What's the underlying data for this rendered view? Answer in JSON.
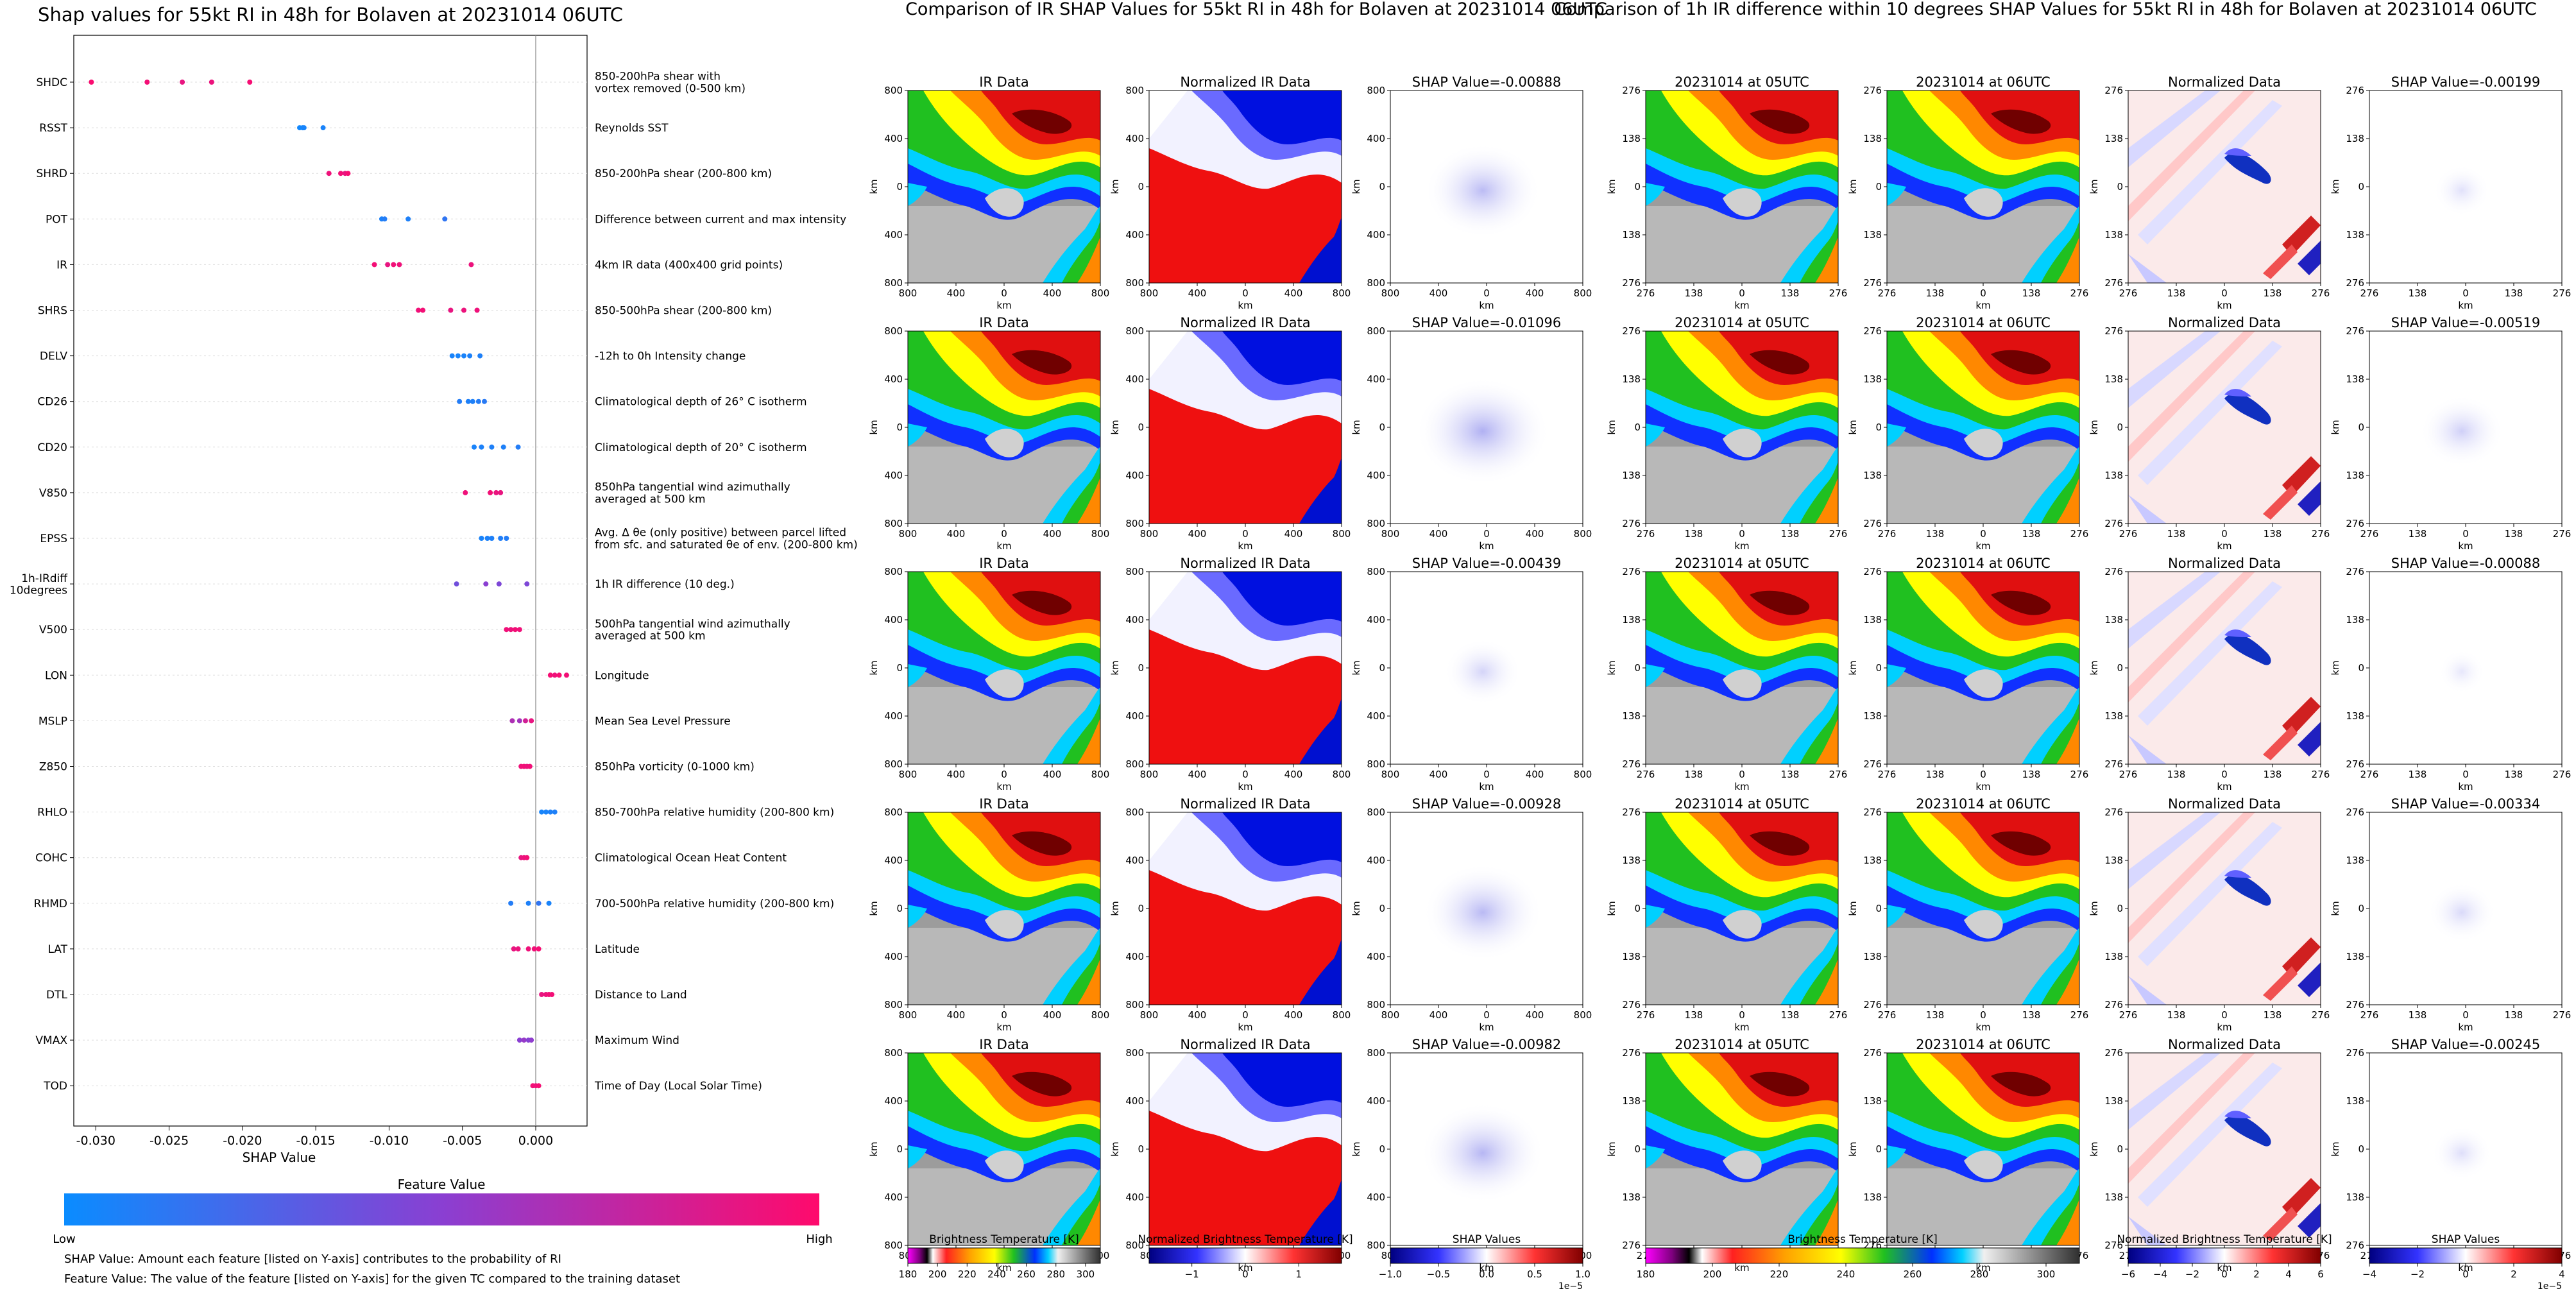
{
  "shap_panel": {
    "title": "Shap values for 55kt RI in 48h for Bolaven at 20231014 06UTC",
    "xlabel": "SHAP Value",
    "xticks": [
      "-0.030",
      "-0.025",
      "-0.020",
      "-0.015",
      "-0.010",
      "-0.005",
      "0.000"
    ],
    "colorbar_title": "Feature Value",
    "colorbar_low": "Low",
    "colorbar_high": "High",
    "note_shap": "SHAP Value: Amount each feature [listed on Y-axis] contributes to the probability of RI",
    "note_feature": "Feature Value: The value of the feature [listed on Y-axis] for the given TC compared to the training dataset",
    "features": [
      {
        "code": "SHDC",
        "desc": "850-200hPa shear with\nvortex removed (0-500 km)"
      },
      {
        "code": "RSST",
        "desc": "Reynolds SST"
      },
      {
        "code": "SHRD",
        "desc": "850-200hPa shear (200-800 km)"
      },
      {
        "code": "POT",
        "desc": "Difference between current and max intensity"
      },
      {
        "code": "IR",
        "desc": "4km IR data (400x400 grid points)"
      },
      {
        "code": "SHRS",
        "desc": "850-500hPa shear (200-800 km)"
      },
      {
        "code": "DELV",
        "desc": "-12h to 0h Intensity change"
      },
      {
        "code": "CD26",
        "desc": "Climatological depth of 26° C isotherm"
      },
      {
        "code": "CD20",
        "desc": "Climatological depth of 20° C isotherm"
      },
      {
        "code": "V850",
        "desc": "850hPa tangential wind azimuthally\naveraged at 500 km"
      },
      {
        "code": "EPSS",
        "desc": "Avg. Δ θe (only positive) between parcel lifted\nfrom sfc. and saturated θe of env. (200-800 km)"
      },
      {
        "code": "1h-IRdiff\n10degrees",
        "desc": "1h IR difference (10 deg.)"
      },
      {
        "code": "V500",
        "desc": "500hPa tangential wind azimuthally\naveraged at 500 km"
      },
      {
        "code": "LON",
        "desc": "Longitude"
      },
      {
        "code": "MSLP",
        "desc": "Mean Sea Level Pressure"
      },
      {
        "code": "Z850",
        "desc": "850hPa vorticity (0-1000 km)"
      },
      {
        "code": "RHLO",
        "desc": "850-700hPa relative humidity (200-800 km)"
      },
      {
        "code": "COHC",
        "desc": "Climatological Ocean Heat Content"
      },
      {
        "code": "RHMD",
        "desc": "700-500hPa relative humidity (200-800 km)"
      },
      {
        "code": "LAT",
        "desc": "Latitude"
      },
      {
        "code": "DTL",
        "desc": "Distance to Land"
      },
      {
        "code": "VMAX",
        "desc": "Maximum Wind"
      },
      {
        "code": "TOD",
        "desc": "Time of Day (Local Solar Time)"
      }
    ]
  },
  "chart_data": [
    {
      "type": "scatter",
      "title": "Shap values for 55kt RI in 48h for Bolaven at 20231014 06UTC",
      "xlabel": "SHAP Value",
      "xlim": [
        -0.0315,
        0.0035
      ],
      "grid": false,
      "colormap": [
        "#0a8cff",
        "#8a3fd2",
        "#ff0a6c"
      ],
      "series": [
        {
          "feature": "SHDC",
          "points": [
            [
              -0.0303,
              0.98
            ],
            [
              -0.0265,
              0.95
            ],
            [
              -0.0241,
              0.9
            ],
            [
              -0.0221,
              0.92
            ],
            [
              -0.0195,
              0.96
            ]
          ]
        },
        {
          "feature": "RSST",
          "points": [
            [
              -0.0161,
              0.03
            ],
            [
              -0.0159,
              0.04
            ],
            [
              -0.0158,
              0.05
            ],
            [
              -0.0145,
              0.06
            ]
          ]
        },
        {
          "feature": "SHRD",
          "points": [
            [
              -0.0141,
              0.93
            ],
            [
              -0.0133,
              0.95
            ],
            [
              -0.013,
              0.9
            ],
            [
              -0.0128,
              0.97
            ]
          ]
        },
        {
          "feature": "POT",
          "points": [
            [
              -0.0105,
              0.07
            ],
            [
              -0.0103,
              0.1
            ],
            [
              -0.0087,
              0.08
            ],
            [
              -0.0062,
              0.15
            ]
          ]
        },
        {
          "feature": "IR",
          "points": [
            [
              -0.011,
              0.95
            ],
            [
              -0.0101,
              0.9
            ],
            [
              -0.0097,
              0.94
            ],
            [
              -0.0093,
              0.93
            ],
            [
              -0.0044,
              0.92
            ]
          ]
        },
        {
          "feature": "SHRS",
          "points": [
            [
              -0.008,
              0.94
            ],
            [
              -0.0077,
              0.95
            ],
            [
              -0.0058,
              0.9
            ],
            [
              -0.0049,
              0.92
            ],
            [
              -0.004,
              0.93
            ]
          ]
        },
        {
          "feature": "DELV",
          "points": [
            [
              -0.0057,
              0.06
            ],
            [
              -0.0053,
              0.05
            ],
            [
              -0.0049,
              0.06
            ],
            [
              -0.0045,
              0.07
            ],
            [
              -0.0038,
              0.08
            ]
          ]
        },
        {
          "feature": "CD26",
          "points": [
            [
              -0.0052,
              0.1
            ],
            [
              -0.0046,
              0.08
            ],
            [
              -0.0043,
              0.08
            ],
            [
              -0.0039,
              0.1
            ],
            [
              -0.0035,
              0.12
            ]
          ]
        },
        {
          "feature": "CD20",
          "points": [
            [
              -0.0042,
              0.06
            ],
            [
              -0.0037,
              0.07
            ],
            [
              -0.003,
              0.08
            ],
            [
              -0.0022,
              0.08
            ],
            [
              -0.0012,
              0.1
            ]
          ]
        },
        {
          "feature": "V850",
          "points": [
            [
              -0.0048,
              0.93
            ],
            [
              -0.0031,
              0.95
            ],
            [
              -0.0027,
              0.91
            ],
            [
              -0.0024,
              0.9
            ]
          ]
        },
        {
          "feature": "EPSS",
          "points": [
            [
              -0.0037,
              0.06
            ],
            [
              -0.0033,
              0.07
            ],
            [
              -0.003,
              0.08
            ],
            [
              -0.0024,
              0.09
            ],
            [
              -0.002,
              0.1
            ]
          ]
        },
        {
          "feature": "1h-IRdiff 10degrees",
          "points": [
            [
              -0.0054,
              0.4
            ],
            [
              -0.0034,
              0.5
            ],
            [
              -0.0025,
              0.45
            ],
            [
              -0.0006,
              0.45
            ]
          ]
        },
        {
          "feature": "V500",
          "points": [
            [
              -0.002,
              0.94
            ],
            [
              -0.0017,
              0.92
            ],
            [
              -0.0014,
              0.95
            ],
            [
              -0.0011,
              0.93
            ]
          ]
        },
        {
          "feature": "LON",
          "points": [
            [
              0.001,
              0.96
            ],
            [
              0.0013,
              0.93
            ],
            [
              0.0016,
              0.97
            ],
            [
              0.0021,
              0.95
            ]
          ]
        },
        {
          "feature": "MSLP",
          "points": [
            [
              -0.0016,
              0.65
            ],
            [
              -0.0011,
              0.6
            ],
            [
              -0.0007,
              0.8
            ],
            [
              -0.0003,
              0.9
            ]
          ]
        },
        {
          "feature": "Z850",
          "points": [
            [
              -0.001,
              0.93
            ],
            [
              -0.0008,
              0.95
            ],
            [
              -0.0006,
              0.92
            ],
            [
              -0.0004,
              0.94
            ]
          ]
        },
        {
          "feature": "RHLO",
          "points": [
            [
              0.0004,
              0.05
            ],
            [
              0.0007,
              0.06
            ],
            [
              0.001,
              0.07
            ],
            [
              0.0013,
              0.08
            ]
          ]
        },
        {
          "feature": "COHC",
          "points": [
            [
              -0.001,
              0.9
            ],
            [
              -0.0008,
              0.92
            ],
            [
              -0.0006,
              0.95
            ]
          ]
        },
        {
          "feature": "RHMD",
          "points": [
            [
              -0.0017,
              0.1
            ],
            [
              -0.0005,
              0.08
            ],
            [
              0.0002,
              0.15
            ],
            [
              0.0009,
              0.06
            ]
          ]
        },
        {
          "feature": "LAT",
          "points": [
            [
              -0.0015,
              0.9
            ],
            [
              -0.0012,
              0.92
            ],
            [
              -0.0005,
              0.93
            ],
            [
              -0.0001,
              0.94
            ],
            [
              0.0002,
              0.96
            ]
          ]
        },
        {
          "feature": "DTL",
          "points": [
            [
              0.0004,
              0.9
            ],
            [
              0.0007,
              0.92
            ],
            [
              0.0009,
              0.94
            ],
            [
              0.0011,
              0.95
            ]
          ]
        },
        {
          "feature": "VMAX",
          "points": [
            [
              -0.0011,
              0.5
            ],
            [
              -0.0008,
              0.55
            ],
            [
              -0.0005,
              0.48
            ],
            [
              -0.0003,
              0.52
            ]
          ]
        },
        {
          "feature": "TOD",
          "points": [
            [
              -0.0002,
              0.95
            ],
            [
              0.0,
              0.93
            ],
            [
              0.0002,
              0.96
            ]
          ]
        }
      ]
    },
    {
      "type": "heatmap",
      "title": "Comparison of IR SHAP Values for 55kt RI in 48h for Bolaven at 20231014 06UTC",
      "columns": [
        {
          "name": "IR Data",
          "xticks": [
            "800",
            "400",
            "0",
            "400",
            "800"
          ],
          "yticks": [
            "800",
            "400",
            "0",
            "400",
            "800"
          ],
          "xlabel": "km",
          "ylabel": "km"
        },
        {
          "name": "Normalized IR Data",
          "xticks": [
            "800",
            "400",
            "0",
            "400",
            "800"
          ],
          "yticks": [
            "800",
            "400",
            "0",
            "400",
            "800"
          ],
          "xlabel": "km",
          "ylabel": "km"
        },
        {
          "name": "SHAP Value",
          "xticks": [
            "800",
            "400",
            "0",
            "400",
            "800"
          ],
          "yticks": [
            "800",
            "400",
            "0",
            "400",
            "800"
          ],
          "xlabel": "km",
          "ylabel": "km"
        }
      ],
      "shap_values": [
        -0.00888,
        -0.01096,
        -0.00439,
        -0.00928,
        -0.00982
      ],
      "colorbars": [
        {
          "label": "Brightness Temperature [K]",
          "ticks": [
            "180",
            "200",
            "220",
            "240",
            "260",
            "280",
            "300"
          ],
          "range": [
            180,
            310
          ]
        },
        {
          "label": "Normalized Brightness Temperature [K]",
          "ticks": [
            "−1",
            "0",
            "1"
          ],
          "range": [
            -1.8,
            1.8
          ]
        },
        {
          "label": "SHAP Values",
          "ticks": [
            "−1.0",
            "−0.5",
            "0.0",
            "0.5",
            "1.0"
          ],
          "range": [
            -1.0,
            1.0
          ],
          "scale_text": "1e−5"
        }
      ]
    },
    {
      "type": "heatmap",
      "title": "Comparison of 1h IR difference within 10 degrees SHAP Values for 55kt RI in 48h for Bolaven at 20231014 06UTC",
      "columns": [
        {
          "name": "20231014 at 05UTC",
          "xticks": [
            "276",
            "138",
            "0",
            "138",
            "276"
          ],
          "yticks": [
            "276",
            "138",
            "0",
            "138",
            "276"
          ],
          "xlabel": "km",
          "ylabel": "km"
        },
        {
          "name": "20231014 at 06UTC",
          "xticks": [
            "276",
            "138",
            "0",
            "138",
            "276"
          ],
          "yticks": [
            "276",
            "138",
            "0",
            "138",
            "276"
          ],
          "xlabel": "km",
          "ylabel": "km"
        },
        {
          "name": "Normalized Data",
          "xticks": [
            "276",
            "138",
            "0",
            "138",
            "276"
          ],
          "yticks": [
            "276",
            "138",
            "0",
            "138",
            "276"
          ],
          "xlabel": "km",
          "ylabel": "km"
        },
        {
          "name": "SHAP Value",
          "xticks": [
            "276",
            "138",
            "0",
            "138",
            "276"
          ],
          "yticks": [
            "276",
            "138",
            "0",
            "138",
            "276"
          ],
          "xlabel": "km",
          "ylabel": "km"
        }
      ],
      "shap_values": [
        -0.00199,
        -0.00519,
        -0.00088,
        -0.00334,
        -0.00245
      ],
      "colorbars": [
        {
          "label": "Brightness Temperature [K]",
          "ticks": [
            "180",
            "200",
            "220",
            "240",
            "260",
            "280",
            "300"
          ],
          "range": [
            180,
            310
          ]
        },
        {
          "label": "Normalized Brightness Temperature [K]",
          "ticks": [
            "−6",
            "−4",
            "−2",
            "0",
            "2",
            "4",
            "6"
          ],
          "range": [
            -6,
            6
          ]
        },
        {
          "label": "SHAP Values",
          "ticks": [
            "−4",
            "−2",
            "0",
            "2",
            "4"
          ],
          "range": [
            -4,
            4
          ],
          "scale_text": "1e−5"
        }
      ]
    }
  ]
}
